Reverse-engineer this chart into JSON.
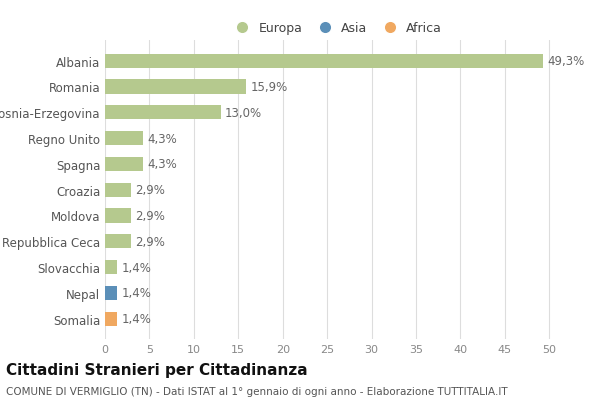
{
  "categories": [
    "Albania",
    "Romania",
    "Bosnia-Erzegovina",
    "Regno Unito",
    "Spagna",
    "Croazia",
    "Moldova",
    "Repubblica Ceca",
    "Slovacchia",
    "Nepal",
    "Somalia"
  ],
  "values": [
    49.3,
    15.9,
    13.0,
    4.3,
    4.3,
    2.9,
    2.9,
    2.9,
    1.4,
    1.4,
    1.4
  ],
  "labels": [
    "49,3%",
    "15,9%",
    "13,0%",
    "4,3%",
    "4,3%",
    "2,9%",
    "2,9%",
    "2,9%",
    "1,4%",
    "1,4%",
    "1,4%"
  ],
  "continents": [
    "Europa",
    "Europa",
    "Europa",
    "Europa",
    "Europa",
    "Europa",
    "Europa",
    "Europa",
    "Europa",
    "Asia",
    "Africa"
  ],
  "colors": {
    "Europa": "#b5c98e",
    "Asia": "#5b8fb8",
    "Africa": "#f0a860"
  },
  "legend_items": [
    "Europa",
    "Asia",
    "Africa"
  ],
  "legend_colors": [
    "#b5c98e",
    "#5b8fb8",
    "#f0a860"
  ],
  "xlim": [
    0,
    52
  ],
  "xticks": [
    0,
    5,
    10,
    15,
    20,
    25,
    30,
    35,
    40,
    45,
    50
  ],
  "title": "Cittadini Stranieri per Cittadinanza",
  "subtitle": "COMUNE DI VERMIGLIO (TN) - Dati ISTAT al 1° gennaio di ogni anno - Elaborazione TUTTITALIA.IT",
  "background_color": "#ffffff",
  "grid_color": "#dddddd",
  "bar_height": 0.55,
  "label_fontsize": 8.5,
  "ytick_fontsize": 8.5,
  "xtick_fontsize": 8,
  "title_fontsize": 11,
  "subtitle_fontsize": 7.5,
  "legend_fontsize": 9
}
